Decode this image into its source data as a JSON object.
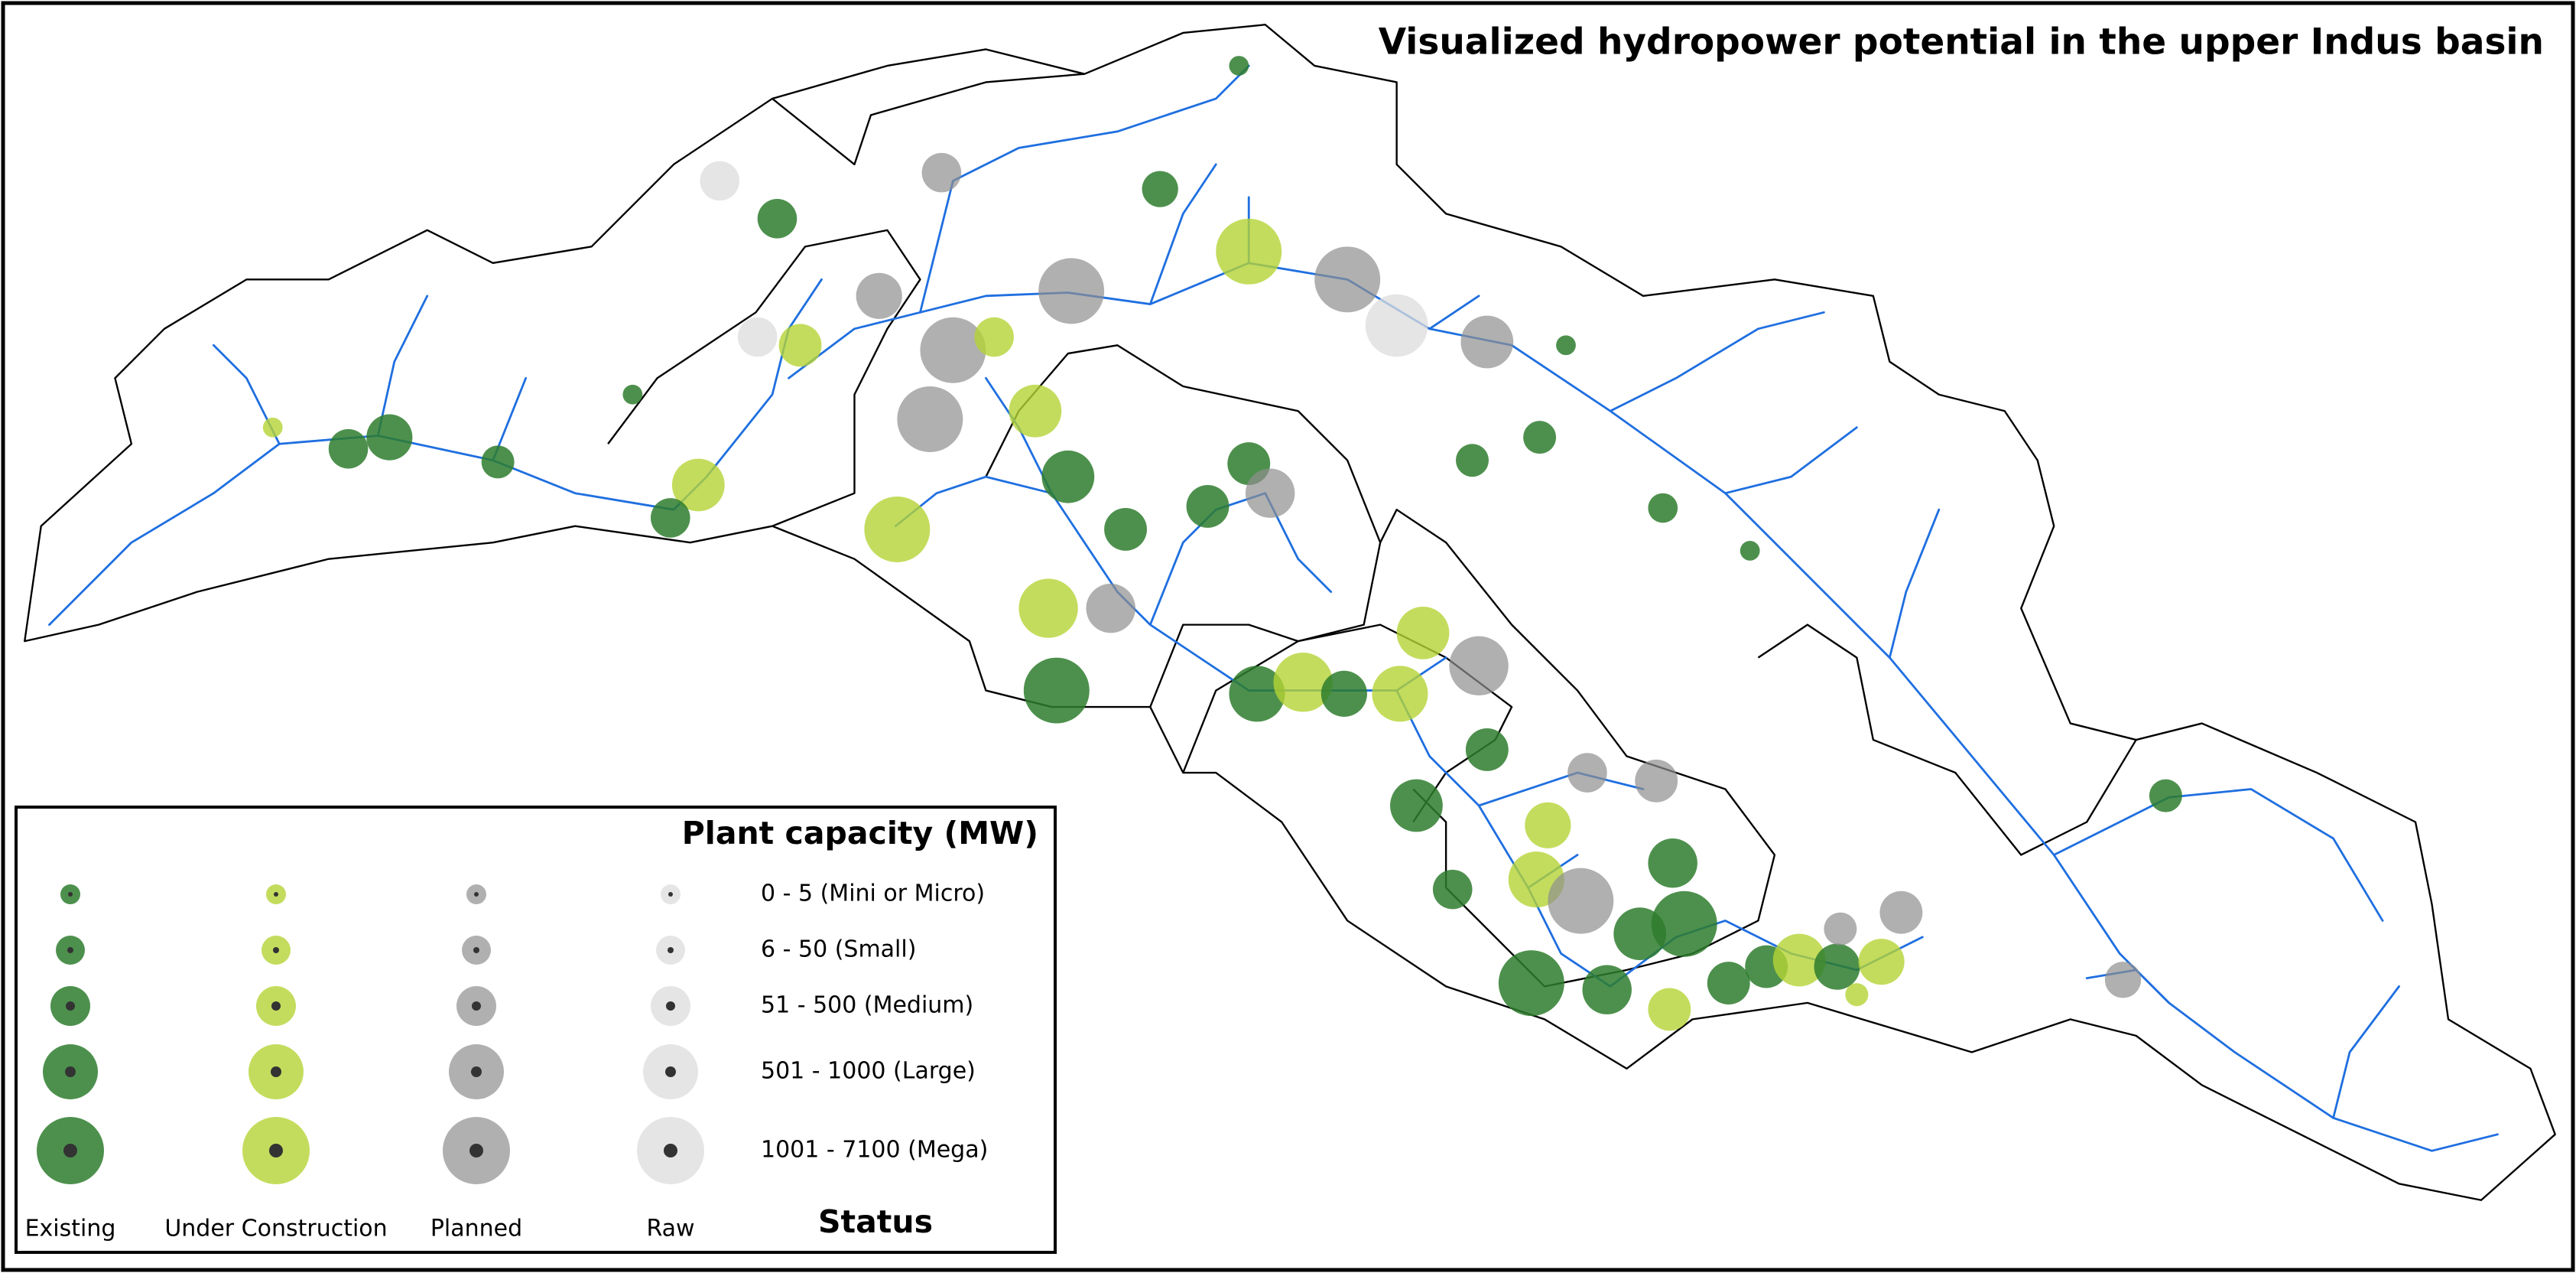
{
  "title": "Visualized hydropower potential in the upper Indus basin",
  "legend": {
    "title": "Plant capacity (MW)",
    "classes": [
      "0 - 5 (Mini or Micro)",
      "6 - 50 (Small)",
      "51 - 500 (Medium)",
      "501 - 1000 (Large)",
      "1001 - 7100 (Mega)"
    ],
    "statuses": [
      "Existing",
      "Under Construction",
      "Planned",
      "Raw"
    ],
    "status_title": "Status"
  }
}
